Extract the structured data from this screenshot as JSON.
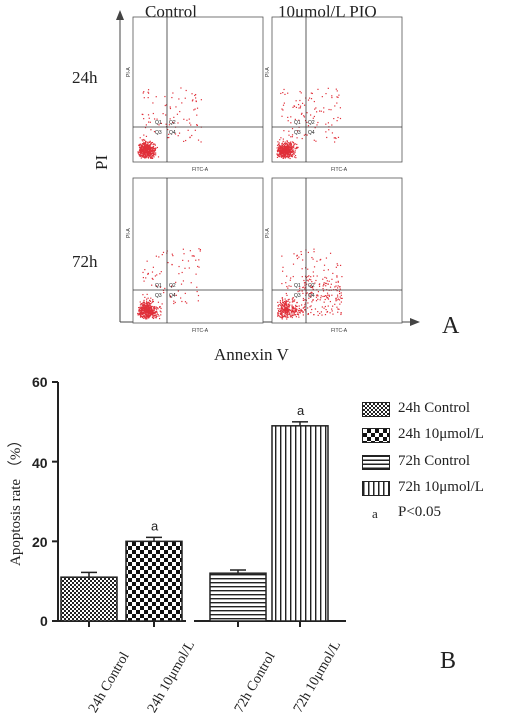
{
  "panel_a": {
    "col_labels": [
      "Control",
      "10μmol/L PIO"
    ],
    "row_labels": [
      "24h",
      "72h"
    ],
    "y_axis_label": "PI",
    "x_axis_label": "Annexin V",
    "panel_letter": "A",
    "plot_y_axis": "PI-A",
    "plot_x_axis": "FITC-A",
    "quadrants": [
      "Q1",
      "Q2",
      "Q3",
      "Q4"
    ],
    "dot_color": "#e0303a"
  },
  "panel_b": {
    "panel_letter": "B",
    "sig_marker": "a",
    "legend": {
      "items": [
        "24h Control",
        "24h 10μmol/L",
        "72h Control",
        "72h 10μmol/L"
      ],
      "sig_text": "a",
      "sig_label": "P<0.05"
    }
  },
  "chart_data": {
    "type": "bar",
    "categories": [
      "24h Control",
      "24h 10μmol/L",
      "72h Control",
      "72h 10μmol/L"
    ],
    "values": [
      11,
      20,
      12,
      49
    ],
    "errors": [
      1.2,
      1.0,
      0.8,
      1.0
    ],
    "significance": [
      "",
      "a",
      "",
      "a"
    ],
    "patterns": [
      "fine-check",
      "coarse-check",
      "horizontal",
      "vertical"
    ],
    "ylabel": "Apoptosis rate （%）",
    "ylim": [
      0,
      60
    ],
    "yticks": [
      0,
      20,
      40,
      60
    ],
    "grid": false
  }
}
